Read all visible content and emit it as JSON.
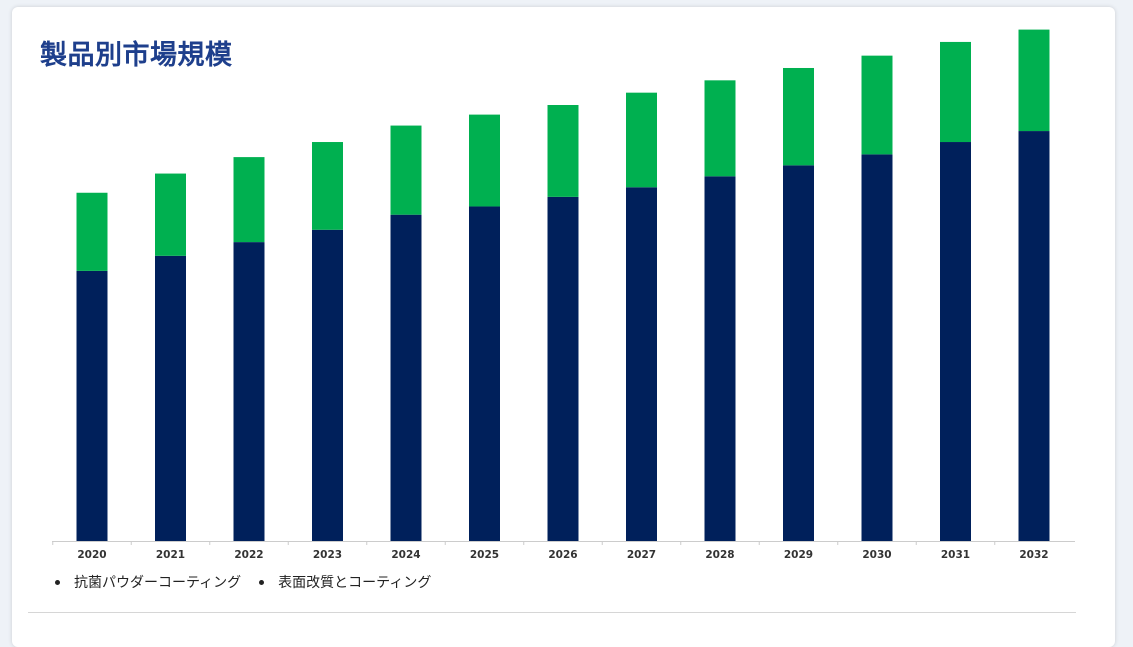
{
  "title": "製品別市場規模",
  "colors": {
    "title": "#1e3f8c",
    "series1": "#00205b",
    "series2": "#00b050",
    "axis": "#cccccc"
  },
  "legend": [
    {
      "label": "抗菌パウダーコーティング"
    },
    {
      "label": "表面改質とコーティング"
    }
  ],
  "chart_data": {
    "type": "bar",
    "stacked": true,
    "categories": [
      "2020",
      "2021",
      "2022",
      "2023",
      "2024",
      "2025",
      "2026",
      "2027",
      "2028",
      "2029",
      "2030",
      "2031",
      "2032"
    ],
    "series": [
      {
        "name": "抗菌パウダーコーティング",
        "color": "#00205b",
        "values": [
          197,
          208,
          218,
          227,
          238,
          244,
          251,
          258,
          266,
          274,
          282,
          291,
          299
        ]
      },
      {
        "name": "表面改質とコーティング",
        "color": "#00b050",
        "values": [
          57,
          60,
          62,
          64,
          65,
          67,
          67,
          69,
          70,
          71,
          72,
          73,
          74
        ]
      }
    ],
    "ylim": [
      0,
      380
    ],
    "y_axis_visible": false,
    "grid": false,
    "legend_position": "bottom-left"
  }
}
